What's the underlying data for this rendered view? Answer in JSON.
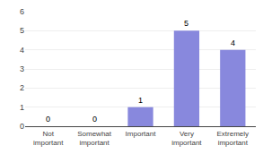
{
  "chart_data": {
    "type": "bar",
    "categories": [
      "Not\nimportant",
      "Somewhat\nimportant",
      "Important",
      "Very\nimportant",
      "Extremely\nimportant"
    ],
    "values": [
      0,
      0,
      1,
      5,
      4
    ],
    "color": "#8888dd",
    "ylim": [
      0,
      6
    ],
    "yticks": [
      0,
      1,
      2,
      3,
      4,
      5,
      6
    ],
    "grid": true,
    "data_labels": true
  }
}
